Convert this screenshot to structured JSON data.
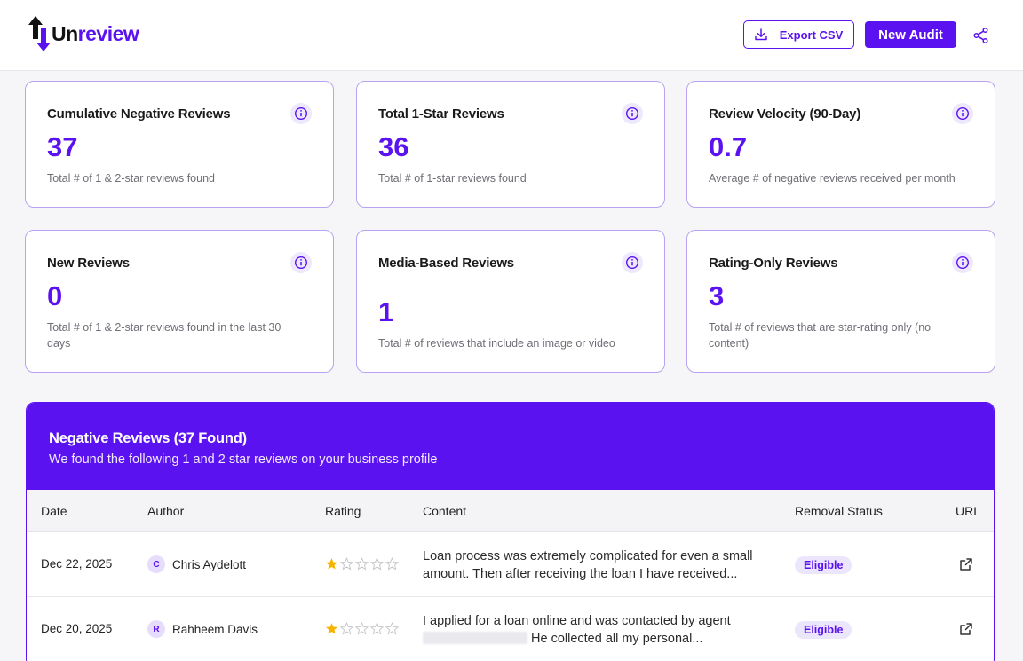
{
  "brand": {
    "name_part1": "Un",
    "name_part2": "review"
  },
  "header": {
    "export_label": "Export CSV",
    "new_audit_label": "New Audit"
  },
  "stats": [
    {
      "title": "Cumulative Negative Reviews",
      "value": "37",
      "desc": "Total # of 1 & 2-star reviews found"
    },
    {
      "title": "Total 1-Star Reviews",
      "value": "36",
      "desc": "Total # of 1-star reviews found"
    },
    {
      "title": "Review Velocity (90-Day)",
      "value": "0.7",
      "desc": "Average # of negative reviews received per month"
    },
    {
      "title": "New Reviews",
      "value": "0",
      "desc": "Total # of 1 & 2-star reviews found in the last 30 days"
    },
    {
      "title": "Media-Based Reviews",
      "value": "1",
      "desc": "Total # of reviews that include an image or video"
    },
    {
      "title": "Rating-Only Reviews",
      "value": "3",
      "desc": "Total # of reviews that are star-rating only (no content)"
    }
  ],
  "reviews": {
    "title": "Negative Reviews (37 Found)",
    "subtitle": "We found the following 1 and 2 star reviews on your business profile",
    "columns": [
      "Date",
      "Author",
      "Rating",
      "Content",
      "Removal Status",
      "URL"
    ],
    "rows": [
      {
        "date": "Dec 22, 2025",
        "initial": "C",
        "author": "Chris Aydelott",
        "rating": 1,
        "content": "Loan process was extremely complicated for even a small amount. Then after receiving the loan I have received...",
        "status": "Eligible"
      },
      {
        "date": "Dec 20, 2025",
        "initial": "R",
        "author": "Rahheem Davis",
        "rating": 1,
        "content_line1": "I applied for a loan online and was contacted by agent",
        "content_line2": "He collected all my personal...",
        "status": "Eligible"
      }
    ]
  },
  "colors": {
    "accent": "#5b12f0",
    "star": "#f5b400"
  },
  "icons": [
    "logo-arrows-icon",
    "download-icon",
    "share-icon",
    "info-icon",
    "star-icon",
    "external-link-icon"
  ]
}
